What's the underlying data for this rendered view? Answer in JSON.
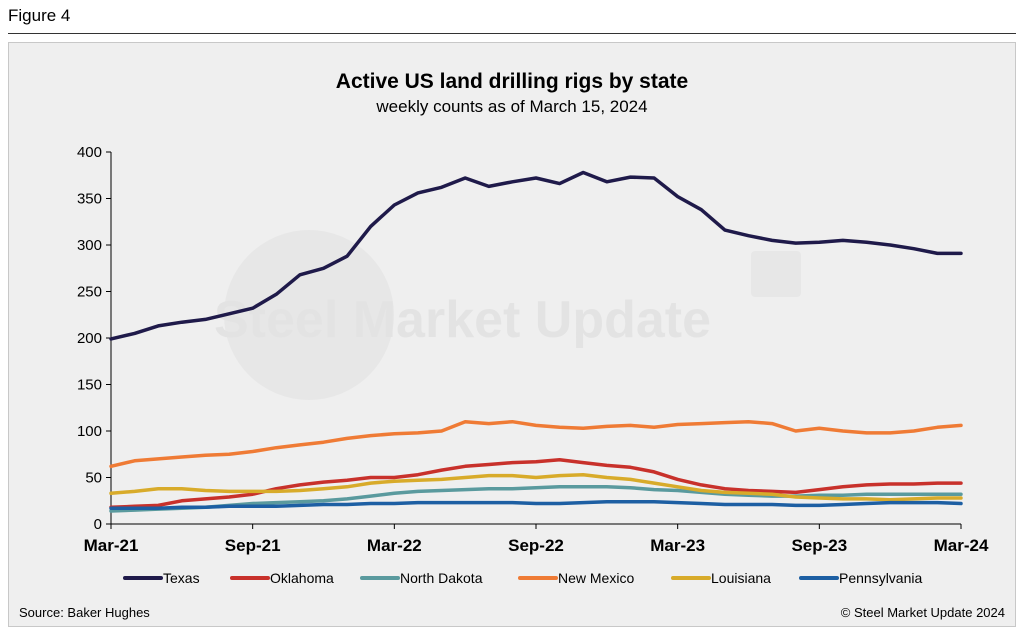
{
  "figure_label": "Figure 4",
  "source": "Source: Baker Hughes",
  "copyright": "© Steel Market Update 2024",
  "watermark": "Steel Market Update",
  "chart_data": {
    "type": "line",
    "title": "Active US land drilling rigs by state",
    "subtitle": "weekly counts as of March 15, 2024",
    "xlabel": "",
    "ylabel": "",
    "ylim": [
      0,
      400
    ],
    "yticks": [
      0,
      50,
      100,
      150,
      200,
      250,
      300,
      350,
      400
    ],
    "xticks": [
      {
        "label": "Mar-21",
        "month": 0
      },
      {
        "label": "Sep-21",
        "month": 6
      },
      {
        "label": "Mar-22",
        "month": 12
      },
      {
        "label": "Sep-22",
        "month": 18
      },
      {
        "label": "Mar-23",
        "month": 24
      },
      {
        "label": "Sep-23",
        "month": 30
      },
      {
        "label": "Mar-24",
        "month": 36
      }
    ],
    "x_unit": "months since Mar-21",
    "x": [
      0,
      1,
      2,
      3,
      4,
      5,
      6,
      7,
      8,
      9,
      10,
      11,
      12,
      13,
      14,
      15,
      16,
      17,
      18,
      19,
      20,
      21,
      22,
      23,
      24,
      25,
      26,
      27,
      28,
      29,
      30,
      31,
      32,
      33,
      34,
      35,
      36
    ],
    "series": [
      {
        "name": "Texas",
        "color": "#1f1a4a",
        "values": [
          199,
          205,
          213,
          217,
          220,
          226,
          232,
          247,
          268,
          275,
          288,
          320,
          343,
          356,
          362,
          372,
          363,
          368,
          372,
          366,
          378,
          368,
          373,
          372,
          352,
          338,
          316,
          310,
          305,
          302,
          303,
          305,
          303,
          300,
          296,
          291,
          291
        ]
      },
      {
        "name": "Oklahoma",
        "color": "#c8312b",
        "values": [
          18,
          19,
          20,
          25,
          27,
          29,
          32,
          38,
          42,
          45,
          47,
          50,
          50,
          53,
          58,
          62,
          64,
          66,
          67,
          69,
          66,
          63,
          61,
          56,
          48,
          42,
          38,
          36,
          35,
          34,
          37,
          40,
          42,
          43,
          43,
          44,
          44
        ]
      },
      {
        "name": "North Dakota",
        "color": "#5a9a9e",
        "values": [
          14,
          15,
          16,
          17,
          18,
          20,
          22,
          23,
          24,
          25,
          27,
          30,
          33,
          35,
          36,
          37,
          38,
          38,
          39,
          40,
          40,
          40,
          39,
          37,
          36,
          34,
          32,
          31,
          30,
          30,
          31,
          31,
          32,
          32,
          32,
          32,
          32
        ]
      },
      {
        "name": "New Mexico",
        "color": "#ef7b35",
        "values": [
          62,
          68,
          70,
          72,
          74,
          75,
          78,
          82,
          85,
          88,
          92,
          95,
          97,
          98,
          100,
          110,
          108,
          110,
          106,
          104,
          103,
          105,
          106,
          104,
          107,
          108,
          109,
          110,
          108,
          100,
          103,
          100,
          98,
          98,
          100,
          104,
          106
        ]
      },
      {
        "name": "Louisiana",
        "color": "#d8ab2a",
        "values": [
          33,
          35,
          38,
          38,
          36,
          35,
          35,
          35,
          36,
          38,
          40,
          44,
          46,
          47,
          48,
          50,
          52,
          52,
          50,
          52,
          53,
          50,
          48,
          44,
          40,
          36,
          34,
          33,
          32,
          29,
          28,
          27,
          27,
          26,
          27,
          28,
          28
        ]
      },
      {
        "name": "Pennsylvania",
        "color": "#1d5fa3",
        "values": [
          17,
          17,
          17,
          18,
          18,
          19,
          19,
          19,
          20,
          21,
          21,
          22,
          22,
          23,
          23,
          23,
          23,
          23,
          22,
          22,
          23,
          24,
          24,
          24,
          23,
          22,
          21,
          21,
          21,
          20,
          20,
          21,
          22,
          23,
          23,
          23,
          22
        ]
      }
    ]
  }
}
